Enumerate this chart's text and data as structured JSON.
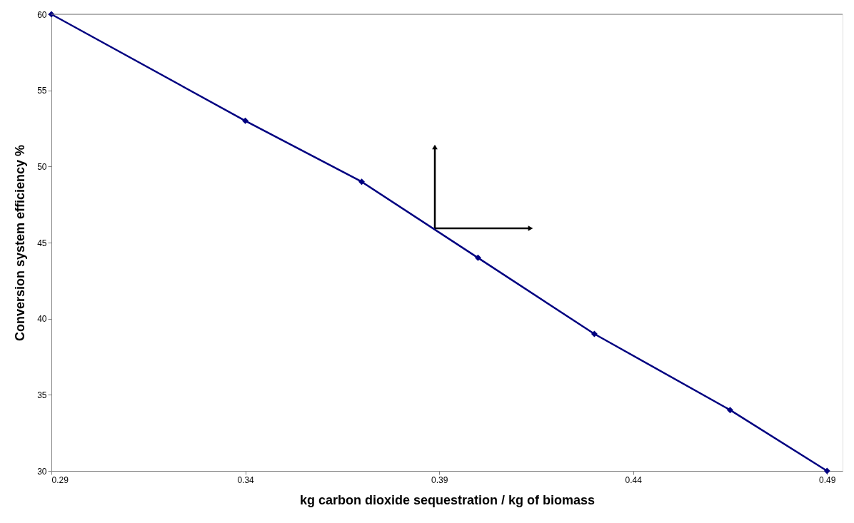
{
  "chart_data": {
    "type": "line",
    "xlabel": "kg carbon dioxide sequestration / kg of biomass",
    "ylabel": "Conversion system efficiency %",
    "x": [
      0.29,
      0.34,
      0.37,
      0.4,
      0.43,
      0.465,
      0.49
    ],
    "series": [
      {
        "color": "#000080",
        "values": [
          60,
          53,
          49,
          44,
          39,
          34,
          30
        ]
      }
    ],
    "xlim": [
      0.29,
      0.494
    ],
    "xticks": [
      0.29,
      0.34,
      0.39,
      0.44,
      0.49
    ],
    "ylim": [
      30,
      60
    ],
    "yticks": [
      30,
      35,
      40,
      45,
      50,
      55,
      60
    ],
    "ref_lines": [
      {
        "axis": "y",
        "value": 60,
        "color": "#808080"
      }
    ],
    "marker": "diamond",
    "line_style": "solid",
    "grid": false
  }
}
